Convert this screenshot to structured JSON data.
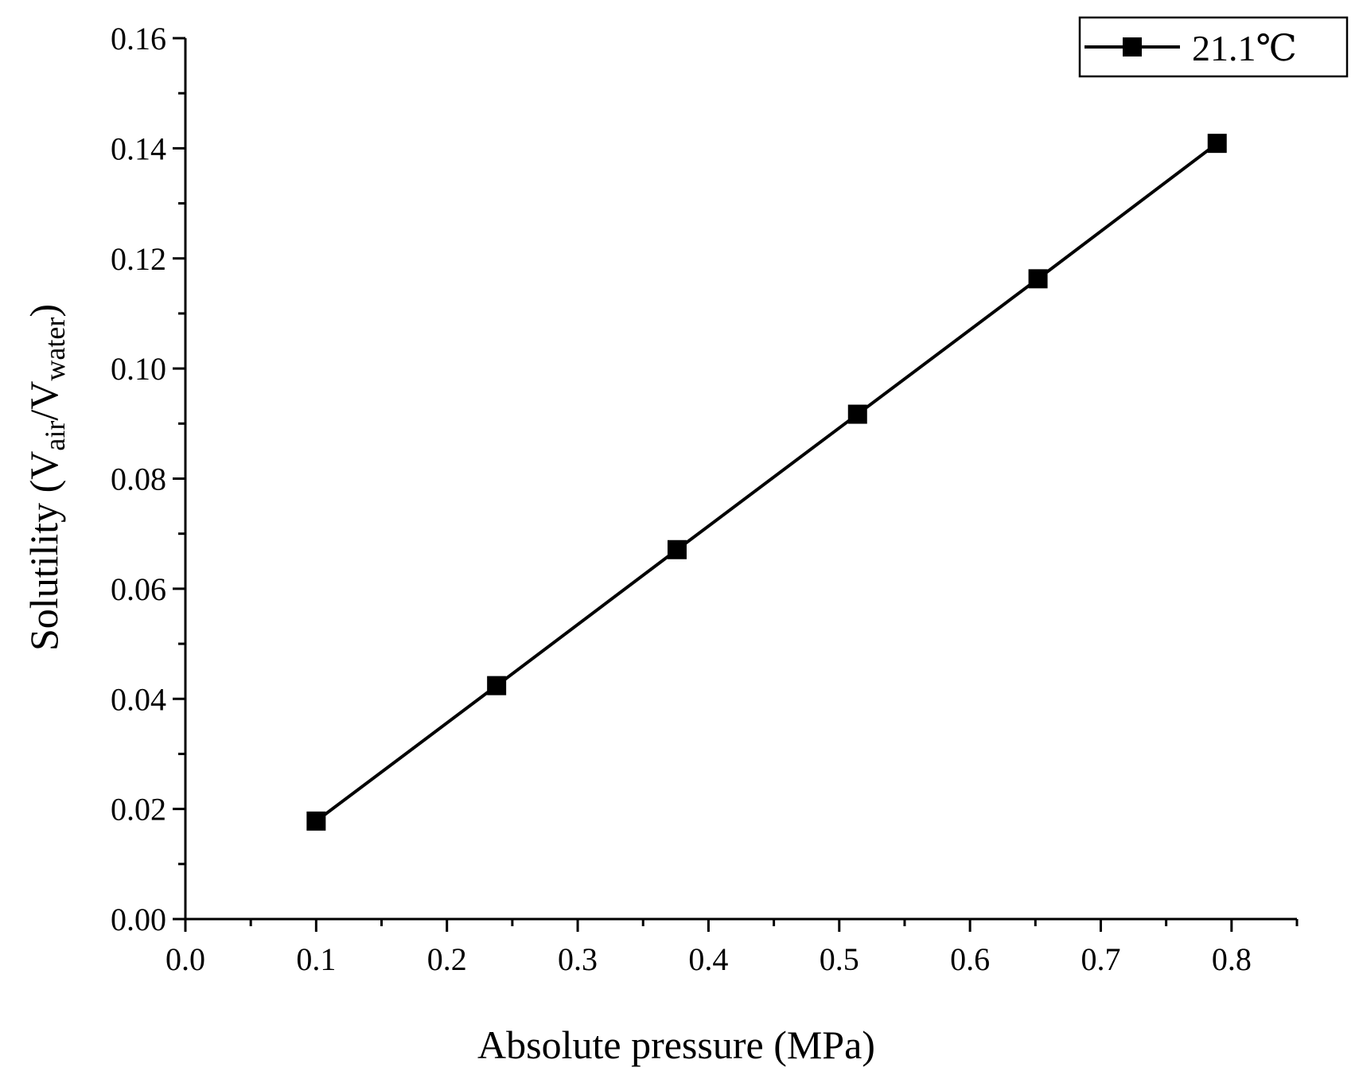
{
  "chart_data": {
    "type": "line",
    "title": "",
    "xlabel": "Absolute pressure (MPa)",
    "ylabel": {
      "prefix": "Solutility (V",
      "sub1": "air",
      "middle": "/V",
      "sub2": "water",
      "suffix": ")"
    },
    "xlim": [
      0.0,
      0.85
    ],
    "ylim": [
      0.0,
      0.16
    ],
    "xticks": [
      "0.0",
      "0.1",
      "0.2",
      "0.3",
      "0.4",
      "0.5",
      "0.6",
      "0.7",
      "0.8"
    ],
    "yticks": [
      "0.00",
      "0.02",
      "0.04",
      "0.06",
      "0.08",
      "0.10",
      "0.12",
      "0.14",
      "0.16"
    ],
    "grid": false,
    "legend_position": "top-right",
    "series": [
      {
        "name": "21.1℃",
        "marker": "square",
        "color": "#000000",
        "x": [
          0.1,
          0.238,
          0.376,
          0.514,
          0.652,
          0.789
        ],
        "y": [
          0.0178,
          0.0424,
          0.0671,
          0.0917,
          0.1163,
          0.1409
        ]
      }
    ]
  }
}
